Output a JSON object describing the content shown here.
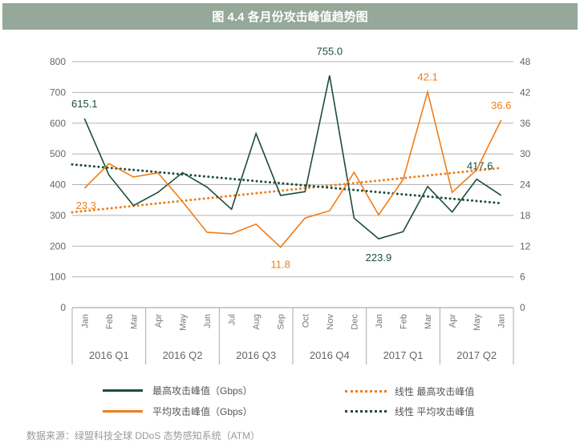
{
  "title": "图 4.4 各月份攻击峰值趋势图",
  "source": "数据来源：绿盟科技全球 DDoS 态势感知系统（ATM）",
  "colors": {
    "max": "#1b4d3a",
    "avg": "#ef7d1b",
    "grid": "#b3b3b3",
    "header": "#95a899"
  },
  "chart_data": {
    "type": "line",
    "categories": [
      "Jan",
      "Feb",
      "Mar",
      "Apr",
      "May",
      "Jun",
      "Jul",
      "Aug",
      "Sep",
      "Oct",
      "Nov",
      "Dec",
      "Jan",
      "Feb",
      "Mar",
      "Apr",
      "May",
      "Jan"
    ],
    "groups": [
      {
        "label": "2016 Q1",
        "span": 3
      },
      {
        "label": "2016 Q2",
        "span": 3
      },
      {
        "label": "2016 Q3",
        "span": 3
      },
      {
        "label": "2016 Q4",
        "span": 3
      },
      {
        "label": "2017 Q1",
        "span": 3
      },
      {
        "label": "2017  Q2",
        "span": 3
      }
    ],
    "y_left": {
      "range": [
        0,
        800
      ],
      "ticks": [
        "0",
        "100",
        "200",
        "300",
        "400",
        "500",
        "600",
        "700",
        "800"
      ]
    },
    "y_right": {
      "range": [
        0,
        48
      ],
      "ticks": [
        "0",
        "6",
        "12",
        "18",
        "24",
        "30",
        "36",
        "42",
        "48"
      ]
    },
    "grid": true,
    "legend_placement": "bottom",
    "series": [
      {
        "name": "最高攻击峰值（Gbps）",
        "axis": "left",
        "color": "#1b4d3a",
        "values": [
          615.1,
          431,
          332,
          375,
          439,
          392,
          320,
          566,
          365,
          377,
          755.0,
          291,
          223.9,
          247,
          394,
          311,
          417.6,
          365
        ],
        "labels": {
          "0": "615.1",
          "10": "755.0",
          "12": "223.9",
          "16": "417.6"
        }
      },
      {
        "name": "平均攻击峰值（Gbps）",
        "axis": "right",
        "color": "#ef7d1b",
        "values": [
          23.3,
          28.1,
          25.5,
          26.3,
          20.7,
          14.7,
          14.4,
          16.3,
          11.8,
          17.5,
          18.9,
          26.4,
          18.1,
          25.0,
          42.1,
          22.5,
          26.9,
          36.6
        ],
        "labels": {
          "0": "23.3",
          "8": "11.8",
          "14": "42.1",
          "17": "36.6"
        }
      }
    ],
    "trendlines": [
      {
        "name": "线性 最高攻击峰值",
        "color": "#ef7d1b",
        "of_series": 1,
        "type": "linear"
      },
      {
        "name": "线性 平均攻击峰值",
        "color": "#1b4d3a",
        "of_series": 0,
        "type": "linear"
      }
    ]
  }
}
